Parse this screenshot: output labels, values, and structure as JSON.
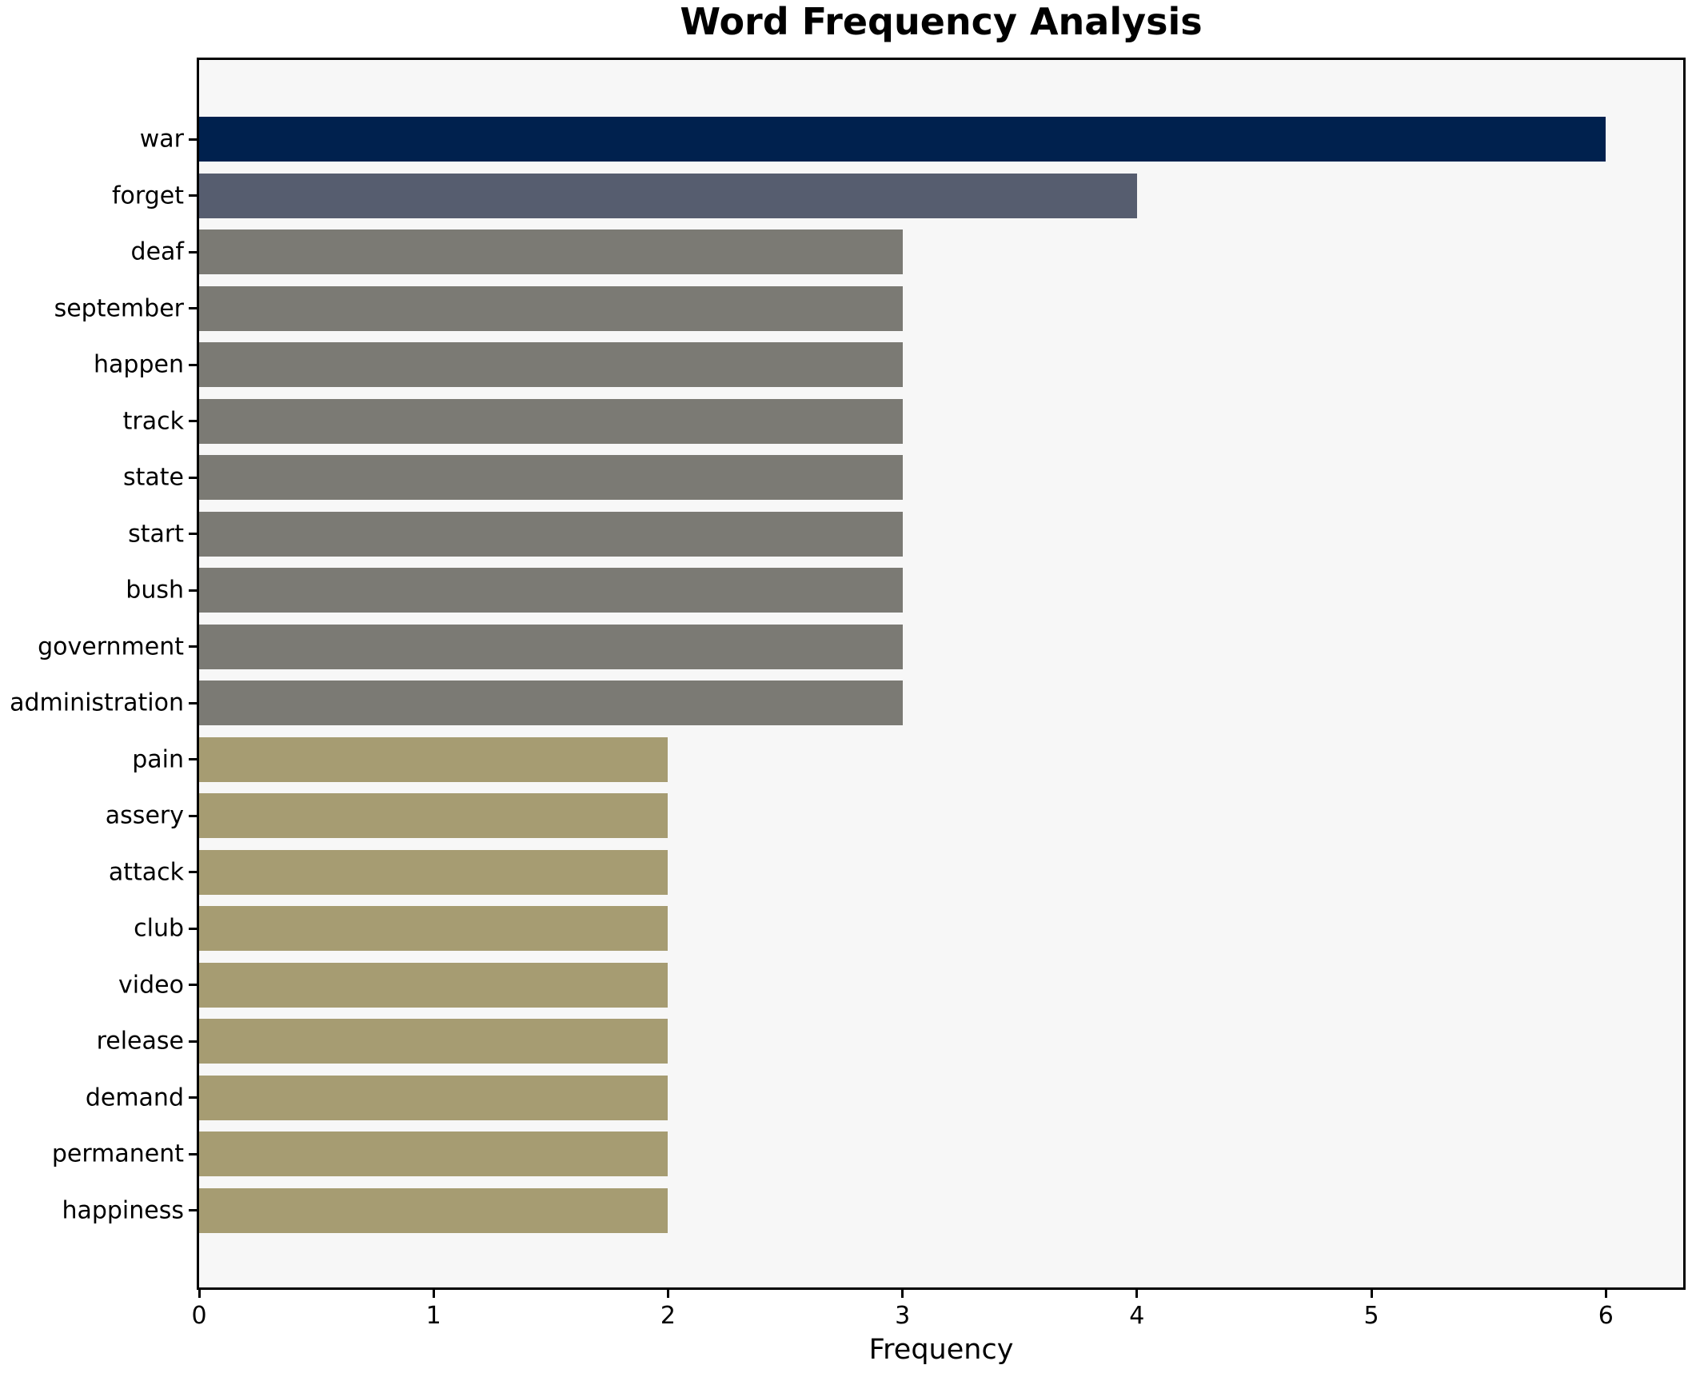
{
  "chart_data": {
    "type": "bar",
    "orientation": "horizontal",
    "title": "Word Frequency Analysis",
    "xlabel": "Frequency",
    "ylabel": "",
    "categories": [
      "war",
      "forget",
      "deaf",
      "september",
      "happen",
      "track",
      "state",
      "start",
      "bush",
      "government",
      "administration",
      "pain",
      "assery",
      "attack",
      "club",
      "video",
      "release",
      "demand",
      "permanent",
      "happiness"
    ],
    "values": [
      6,
      4,
      3,
      3,
      3,
      3,
      3,
      3,
      3,
      3,
      3,
      2,
      2,
      2,
      2,
      2,
      2,
      2,
      2,
      2
    ],
    "bar_colors": [
      "#00214e",
      "#565d6f",
      "#7b7a74",
      "#7b7a74",
      "#7b7a74",
      "#7b7a74",
      "#7b7a74",
      "#7b7a74",
      "#7b7a74",
      "#7b7a74",
      "#7b7a74",
      "#a69c72",
      "#a69c72",
      "#a69c72",
      "#a69c72",
      "#a69c72",
      "#a69c72",
      "#a69c72",
      "#a69c72",
      "#a69c72"
    ],
    "xticks": [
      0,
      1,
      2,
      3,
      4,
      5,
      6
    ],
    "xlim": [
      0,
      6.33
    ],
    "grid": false,
    "legend": null,
    "value_color_map": {
      "6": "#00214e",
      "4": "#565d6f",
      "3": "#7b7a74",
      "2": "#a69c72"
    },
    "plot_background": "#f7f7f7",
    "figure_background": "#ffffff",
    "axis_color": "#000000"
  }
}
